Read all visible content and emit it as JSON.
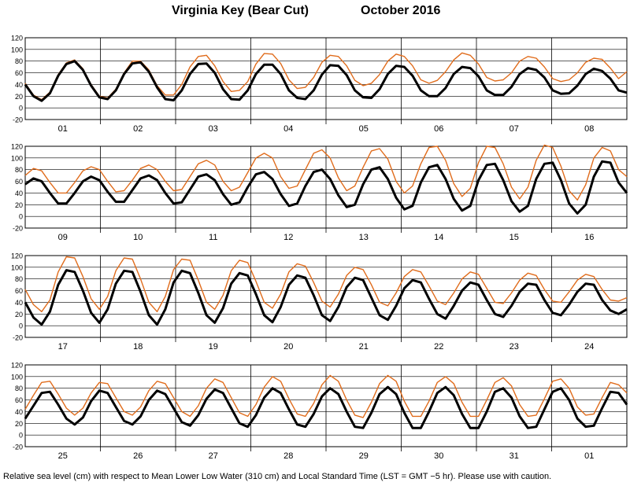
{
  "title": {
    "station": "Virginia Key (Bear Cut)",
    "period": "October   2016"
  },
  "footnote": "Relative sea level (cm) with respect to Mean Lower Low Water (310 cm) and Local Standard Time (LST = GMT −5 hr). Please use with caution.",
  "colors": {
    "predicted": "#000000",
    "observed": "#e06c1c",
    "grid": "#000000"
  },
  "chart_data": {
    "type": "line",
    "ylabel": "",
    "ylim": [
      -20,
      120
    ],
    "yticks": [
      -20,
      0,
      20,
      40,
      60,
      80,
      100,
      120
    ],
    "grid": true,
    "series_names": [
      "predicted",
      "observed"
    ],
    "panels": [
      {
        "days": [
          "01",
          "02",
          "03",
          "04",
          "05",
          "06",
          "07",
          "08"
        ],
        "predicted": [
          40,
          20,
          12,
          25,
          55,
          75,
          80,
          65,
          38,
          18,
          15,
          30,
          58,
          76,
          78,
          62,
          35,
          15,
          13,
          30,
          58,
          75,
          76,
          60,
          32,
          15,
          14,
          30,
          58,
          74,
          74,
          58,
          30,
          17,
          15,
          30,
          57,
          73,
          72,
          56,
          30,
          18,
          17,
          32,
          58,
          72,
          70,
          55,
          30,
          20,
          20,
          34,
          58,
          70,
          68,
          54,
          30,
          22,
          22,
          36,
          58,
          68,
          65,
          52,
          30,
          24,
          25,
          38,
          58,
          67,
          63,
          50,
          30,
          26
        ],
        "observed": [
          42,
          22,
          14,
          27,
          57,
          77,
          82,
          67,
          40,
          20,
          17,
          32,
          60,
          80,
          80,
          65,
          38,
          22,
          22,
          40,
          70,
          88,
          90,
          72,
          45,
          28,
          30,
          45,
          75,
          93,
          92,
          76,
          48,
          33,
          35,
          52,
          78,
          90,
          88,
          72,
          47,
          38,
          42,
          57,
          80,
          92,
          88,
          72,
          48,
          42,
          47,
          62,
          82,
          94,
          90,
          75,
          52,
          46,
          48,
          60,
          80,
          88,
          85,
          70,
          50,
          45,
          48,
          60,
          78,
          85,
          83,
          68,
          50,
          62
        ]
      },
      {
        "days": [
          "09",
          "10",
          "11",
          "12",
          "13",
          "14",
          "15",
          "16"
        ],
        "predicted": [
          55,
          65,
          60,
          40,
          22,
          22,
          40,
          60,
          68,
          62,
          42,
          25,
          25,
          45,
          65,
          70,
          62,
          40,
          22,
          24,
          46,
          68,
          72,
          62,
          38,
          20,
          24,
          50,
          72,
          76,
          64,
          38,
          18,
          22,
          52,
          76,
          80,
          64,
          36,
          16,
          20,
          55,
          80,
          84,
          64,
          32,
          12,
          18,
          58,
          84,
          88,
          64,
          30,
          10,
          18,
          62,
          88,
          90,
          62,
          26,
          8,
          18,
          64,
          90,
          92,
          62,
          22,
          5,
          20,
          68,
          94,
          92,
          58,
          40
        ],
        "observed": [
          70,
          82,
          78,
          58,
          40,
          40,
          58,
          78,
          85,
          80,
          60,
          42,
          44,
          62,
          82,
          88,
          80,
          60,
          44,
          46,
          68,
          90,
          96,
          88,
          60,
          44,
          50,
          75,
          100,
          108,
          100,
          68,
          48,
          52,
          80,
          108,
          114,
          100,
          66,
          44,
          52,
          84,
          112,
          116,
          98,
          60,
          40,
          52,
          90,
          118,
          120,
          96,
          56,
          34,
          48,
          92,
          120,
          118,
          90,
          50,
          30,
          50,
          96,
          122,
          118,
          86,
          44,
          28,
          54,
          100,
          118,
          112,
          80,
          68
        ]
      },
      {
        "days": [
          "17",
          "18",
          "19",
          "20",
          "21",
          "22",
          "23",
          "24"
        ],
        "predicted": [
          40,
          14,
          2,
          24,
          70,
          95,
          92,
          60,
          22,
          5,
          28,
          72,
          94,
          92,
          58,
          18,
          2,
          28,
          74,
          94,
          90,
          56,
          18,
          5,
          30,
          72,
          90,
          86,
          54,
          18,
          6,
          32,
          70,
          86,
          82,
          52,
          18,
          8,
          32,
          66,
          82,
          78,
          48,
          18,
          10,
          34,
          64,
          78,
          74,
          46,
          20,
          12,
          34,
          60,
          74,
          70,
          44,
          20,
          15,
          34,
          58,
          72,
          70,
          44,
          22,
          18,
          36,
          58,
          72,
          70,
          44,
          26,
          20,
          28
        ],
        "observed": [
          62,
          36,
          24,
          44,
          92,
          118,
          116,
          84,
          46,
          28,
          50,
          94,
          116,
          114,
          80,
          40,
          24,
          50,
          96,
          114,
          112,
          78,
          40,
          28,
          52,
          94,
          112,
          108,
          76,
          40,
          30,
          54,
          92,
          106,
          102,
          74,
          42,
          32,
          54,
          86,
          100,
          96,
          70,
          40,
          34,
          56,
          84,
          96,
          92,
          68,
          42,
          36,
          56,
          80,
          92,
          88,
          64,
          40,
          38,
          56,
          78,
          90,
          86,
          62,
          42,
          40,
          58,
          78,
          88,
          84,
          62,
          44,
          42,
          48
        ]
      },
      {
        "days": [
          "25",
          "26",
          "27",
          "28",
          "29",
          "30",
          "31",
          "01"
        ],
        "predicted": [
          28,
          50,
          72,
          74,
          52,
          28,
          18,
          30,
          58,
          76,
          72,
          48,
          24,
          18,
          32,
          60,
          76,
          70,
          46,
          22,
          16,
          34,
          62,
          78,
          72,
          46,
          20,
          14,
          34,
          64,
          80,
          72,
          44,
          18,
          14,
          36,
          66,
          80,
          70,
          40,
          14,
          12,
          38,
          70,
          82,
          70,
          38,
          12,
          12,
          40,
          72,
          82,
          68,
          36,
          12,
          12,
          40,
          74,
          80,
          64,
          32,
          12,
          14,
          44,
          74,
          80,
          60,
          28,
          14,
          16,
          46,
          74,
          72,
          52
        ],
        "observed": [
          44,
          68,
          90,
          92,
          70,
          46,
          34,
          46,
          72,
          90,
          88,
          64,
          40,
          34,
          48,
          76,
          92,
          88,
          64,
          40,
          32,
          50,
          80,
          96,
          90,
          64,
          38,
          32,
          52,
          82,
          100,
          92,
          62,
          36,
          32,
          54,
          86,
          102,
          92,
          60,
          34,
          30,
          56,
          88,
          102,
          92,
          58,
          32,
          32,
          58,
          90,
          100,
          88,
          56,
          32,
          32,
          60,
          90,
          98,
          84,
          52,
          32,
          34,
          62,
          92,
          96,
          80,
          48,
          34,
          36,
          64,
          90,
          86,
          72
        ]
      }
    ]
  }
}
